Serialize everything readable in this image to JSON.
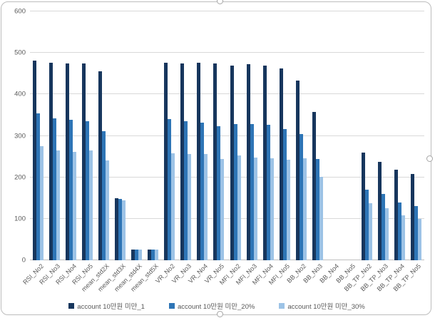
{
  "chart_data": {
    "type": "bar",
    "title": "",
    "xlabel": "",
    "ylabel": "",
    "ylim": [
      0,
      600
    ],
    "yticks": [
      0,
      100,
      200,
      300,
      400,
      500,
      600
    ],
    "grid": true,
    "legend_position": "bottom",
    "categories": [
      "RSI_No2",
      "RSI_No3",
      "RSI_No4",
      "RSI_No5",
      "mean_std2X",
      "mean_std3X",
      "mean_std4X",
      "mean_std5X",
      "VR_No2",
      "VR_No3",
      "VR_No4",
      "VR_No5",
      "MFI_No2",
      "MFI_No3",
      "MFI_No4",
      "MFI_No5",
      "BB_No2",
      "BB_No3",
      "BB_No4",
      "BB_No5",
      "BB_TP_No2",
      "BB_TP_No3",
      "BB_TP_No4",
      "BB_TP_No5"
    ],
    "series": [
      {
        "name": "account 10만원 미만_1",
        "color": "#17365d",
        "values": [
          482,
          477,
          474,
          474,
          455,
          150,
          26,
          26,
          477,
          474,
          476,
          475,
          470,
          473,
          470,
          462,
          434,
          358,
          0,
          0,
          259,
          238,
          219,
          208
        ]
      },
      {
        "name": "account 10만원 미만_20%",
        "color": "#2e75b6",
        "values": [
          354,
          342,
          338,
          336,
          311,
          148,
          26,
          26,
          340,
          335,
          331,
          324,
          329,
          328,
          327,
          317,
          305,
          244,
          0,
          0,
          171,
          160,
          139,
          131
        ]
      },
      {
        "name": "account 10만원 미만_30%",
        "color": "#9dc3e6",
        "values": [
          275,
          265,
          262,
          264,
          240,
          144,
          26,
          26,
          258,
          257,
          256,
          244,
          252,
          248,
          245,
          242,
          245,
          202,
          0,
          0,
          138,
          126,
          108,
          100
        ]
      }
    ],
    "colors": {
      "gridline": "#d9d9d9",
      "baseline": "#bfbfbf",
      "axis_text": "#595959",
      "frame_border": "#bdbdbd",
      "background": "#ffffff"
    }
  }
}
